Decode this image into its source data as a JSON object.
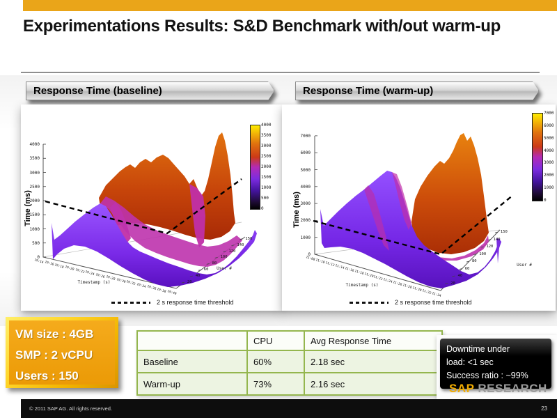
{
  "slide": {
    "title": "Experimentations Results: S&D Benchmark with/out warm-up",
    "page_number": "23",
    "footer_copyright": "© 2011 SAP AG. All rights reserved.",
    "accent_bar_color": "#EAA519"
  },
  "banners": {
    "baseline": "Response Time (baseline)",
    "warmup": "Response Time (warm-up)"
  },
  "chart_data": [
    {
      "id": "baseline",
      "type": "surface3d",
      "title": "Response Time (baseline)",
      "zlabel": "Time (ms)",
      "xlabel": "Timestamp (s)",
      "ylabel": "User #",
      "zlim": [
        0,
        4000
      ],
      "z_ticks": [
        0,
        500,
        1000,
        1500,
        2000,
        2500,
        3000,
        3500,
        4000
      ],
      "colorbar_ticks": [
        0,
        500,
        1000,
        1500,
        2000,
        2500,
        3000,
        3500,
        4000
      ],
      "user_ticks": [
        20,
        40,
        60,
        80,
        100,
        120,
        140,
        150
      ],
      "time_ticks": [
        "19:14",
        "19:16",
        "19:18",
        "19:20",
        "19:22",
        "19:24",
        "19:26",
        "19:28",
        "19:30",
        "19:32",
        "19:34",
        "19:36",
        "19:38",
        "19:40"
      ],
      "threshold": {
        "value_ms": 2000,
        "label": "2 s response time threshold"
      },
      "palette": [
        "#000000",
        "#44149e",
        "#7c2ce0",
        "#b32bb5",
        "#cc3a17",
        "#e0720e",
        "#f2b307",
        "#ffec00"
      ]
    },
    {
      "id": "warmup",
      "type": "surface3d",
      "title": "Response Time (warm-up)",
      "zlabel": "Time (ms)",
      "xlabel": "Timestamp (s)",
      "ylabel": "User #",
      "zlim": [
        0,
        7000
      ],
      "z_ticks": [
        0,
        1000,
        2000,
        3000,
        4000,
        5000,
        6000,
        7000
      ],
      "colorbar_ticks": [
        0,
        1000,
        2000,
        3000,
        4000,
        5000,
        6000,
        7000
      ],
      "user_ticks": [
        20,
        40,
        60,
        80,
        100,
        120,
        140,
        150
      ],
      "time_ticks": [
        "11:08",
        "11:10",
        "11:12",
        "11:14",
        "11:16",
        "11:18",
        "11:20",
        "11:22",
        "11:24",
        "11:26",
        "11:28",
        "11:30",
        "11:32",
        "11:34"
      ],
      "threshold": {
        "value_ms": 2000,
        "label": "2 s response time threshold"
      },
      "palette": [
        "#000000",
        "#44149e",
        "#7c2ce0",
        "#b32bb5",
        "#cc3a17",
        "#e0720e",
        "#f2b307",
        "#ffec00"
      ]
    }
  ],
  "vm_box": {
    "lines": [
      "VM size : 4GB",
      "SMP : 2 vCPU",
      "Users : 150"
    ]
  },
  "results_table": {
    "headers": [
      "",
      "CPU",
      "Avg Response Time"
    ],
    "rows": [
      {
        "label": "Baseline",
        "cpu": "60%",
        "avg": "2.18 sec"
      },
      {
        "label": "Warm-up",
        "cpu": "73%",
        "avg": "2.16 sec"
      }
    ],
    "border_color": "#94B64E"
  },
  "downtime_box": {
    "lines": [
      "Downtime under",
      "load:  <1 sec",
      "Success ratio : ~99%"
    ]
  },
  "logo": {
    "sap": "SAP",
    "research": "RESEARCH",
    "sap_color": "#F0AB00"
  }
}
